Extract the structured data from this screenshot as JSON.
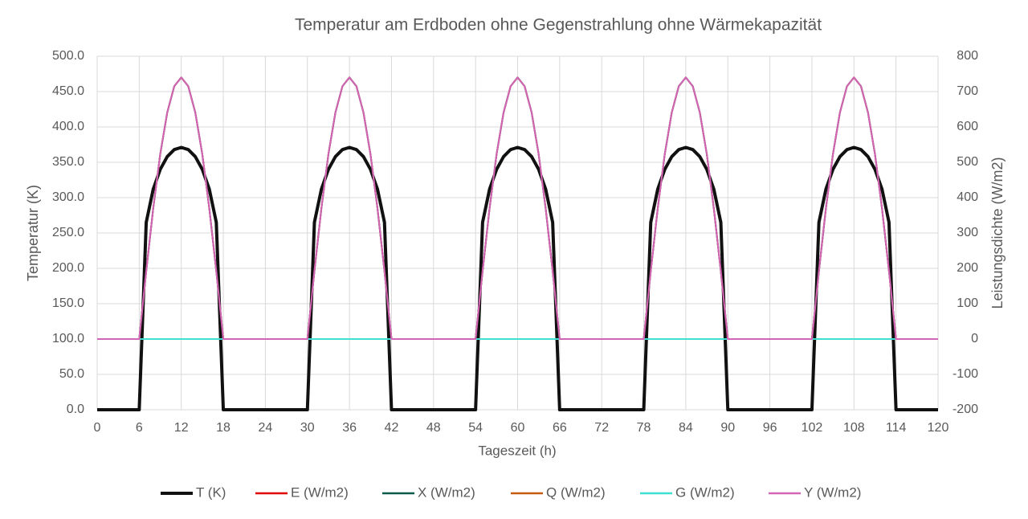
{
  "chart_data": {
    "type": "line",
    "title": "Temperatur am Erdboden ohne Gegenstrahlung ohne Wärmekapazität",
    "xlabel": "Tageszeit (h)",
    "ylabel": "Temperatur (K)",
    "y2label": "Leistungsdichte  (W/m2)",
    "x": [
      0,
      1,
      2,
      3,
      4,
      5,
      6,
      7,
      8,
      9,
      10,
      11,
      12,
      13,
      14,
      15,
      16,
      17,
      18,
      19,
      20,
      21,
      22,
      23,
      24,
      25,
      26,
      27,
      28,
      29,
      30,
      31,
      32,
      33,
      34,
      35,
      36,
      37,
      38,
      39,
      40,
      41,
      42,
      43,
      44,
      45,
      46,
      47,
      48,
      49,
      50,
      51,
      52,
      53,
      54,
      55,
      56,
      57,
      58,
      59,
      60,
      61,
      62,
      63,
      64,
      65,
      66,
      67,
      68,
      69,
      70,
      71,
      72,
      73,
      74,
      75,
      76,
      77,
      78,
      79,
      80,
      81,
      82,
      83,
      84,
      85,
      86,
      87,
      88,
      89,
      90,
      91,
      92,
      93,
      94,
      95,
      96,
      97,
      98,
      99,
      100,
      101,
      102,
      103,
      104,
      105,
      106,
      107,
      108,
      109,
      110,
      111,
      112,
      113,
      114,
      115,
      116,
      117,
      118,
      119,
      120
    ],
    "xlim": [
      0,
      120
    ],
    "xticks": [
      0,
      6,
      12,
      18,
      24,
      30,
      36,
      42,
      48,
      54,
      60,
      66,
      72,
      78,
      84,
      90,
      96,
      102,
      108,
      114,
      120
    ],
    "ylim": [
      0,
      500
    ],
    "yticks": [
      {
        "value": 0,
        "label": "0.0"
      },
      {
        "value": 50,
        "label": "50.0"
      },
      {
        "value": 100,
        "label": "100.0"
      },
      {
        "value": 150,
        "label": "150.0"
      },
      {
        "value": 200,
        "label": "200.0"
      },
      {
        "value": 250,
        "label": "250.0"
      },
      {
        "value": 300,
        "label": "300.0"
      },
      {
        "value": 350,
        "label": "350.0"
      },
      {
        "value": 400,
        "label": "400.0"
      },
      {
        "value": 450,
        "label": "450.0"
      },
      {
        "value": 500,
        "label": "500.0"
      }
    ],
    "y2lim": [
      -200,
      800
    ],
    "y2ticks": [
      -200,
      -100,
      0,
      100,
      200,
      300,
      400,
      500,
      600,
      700,
      800
    ],
    "grid": true,
    "legend": "bottom",
    "series": [
      {
        "name": "T (K)",
        "color": "#111111",
        "width": 4,
        "axis": "y",
        "values": [
          0,
          0,
          0,
          0,
          0,
          0,
          0,
          265,
          312,
          340,
          358,
          368,
          371,
          368,
          358,
          340,
          312,
          265,
          0,
          0,
          0,
          0,
          0,
          0,
          0,
          0,
          0,
          0,
          0,
          0,
          0,
          265,
          312,
          340,
          358,
          368,
          371,
          368,
          358,
          340,
          312,
          265,
          0,
          0,
          0,
          0,
          0,
          0,
          0,
          0,
          0,
          0,
          0,
          0,
          0,
          265,
          312,
          340,
          358,
          368,
          371,
          368,
          358,
          340,
          312,
          265,
          0,
          0,
          0,
          0,
          0,
          0,
          0,
          0,
          0,
          0,
          0,
          0,
          0,
          265,
          312,
          340,
          358,
          368,
          371,
          368,
          358,
          340,
          312,
          265,
          0,
          0,
          0,
          0,
          0,
          0,
          0,
          0,
          0,
          0,
          0,
          0,
          0,
          265,
          312,
          340,
          358,
          368,
          371,
          368,
          358,
          340,
          312,
          265,
          0,
          0,
          0,
          0,
          0,
          0,
          0
        ]
      },
      {
        "name": "E (W/m2)",
        "color": "#e00000",
        "width": 2,
        "axis": "y2",
        "values": [
          0,
          0,
          0,
          0,
          0,
          0,
          0,
          192,
          370,
          523,
          641,
          715,
          740,
          715,
          641,
          523,
          370,
          192,
          0,
          0,
          0,
          0,
          0,
          0,
          0,
          0,
          0,
          0,
          0,
          0,
          0,
          192,
          370,
          523,
          641,
          715,
          740,
          715,
          641,
          523,
          370,
          192,
          0,
          0,
          0,
          0,
          0,
          0,
          0,
          0,
          0,
          0,
          0,
          0,
          0,
          192,
          370,
          523,
          641,
          715,
          740,
          715,
          641,
          523,
          370,
          192,
          0,
          0,
          0,
          0,
          0,
          0,
          0,
          0,
          0,
          0,
          0,
          0,
          0,
          192,
          370,
          523,
          641,
          715,
          740,
          715,
          641,
          523,
          370,
          192,
          0,
          0,
          0,
          0,
          0,
          0,
          0,
          0,
          0,
          0,
          0,
          0,
          0,
          192,
          370,
          523,
          641,
          715,
          740,
          715,
          641,
          523,
          370,
          192,
          0,
          0,
          0,
          0,
          0,
          0,
          0
        ]
      },
      {
        "name": "X (W/m2)",
        "color": "#0b5a4a",
        "width": 2,
        "axis": "y2",
        "values": [
          0,
          0,
          0,
          0,
          0,
          0,
          0,
          192,
          370,
          523,
          641,
          715,
          740,
          715,
          641,
          523,
          370,
          192,
          0,
          0,
          0,
          0,
          0,
          0,
          0,
          0,
          0,
          0,
          0,
          0,
          0,
          192,
          370,
          523,
          641,
          715,
          740,
          715,
          641,
          523,
          370,
          192,
          0,
          0,
          0,
          0,
          0,
          0,
          0,
          0,
          0,
          0,
          0,
          0,
          0,
          192,
          370,
          523,
          641,
          715,
          740,
          715,
          641,
          523,
          370,
          192,
          0,
          0,
          0,
          0,
          0,
          0,
          0,
          0,
          0,
          0,
          0,
          0,
          0,
          192,
          370,
          523,
          641,
          715,
          740,
          715,
          641,
          523,
          370,
          192,
          0,
          0,
          0,
          0,
          0,
          0,
          0,
          0,
          0,
          0,
          0,
          0,
          0,
          192,
          370,
          523,
          641,
          715,
          740,
          715,
          641,
          523,
          370,
          192,
          0,
          0,
          0,
          0,
          0,
          0,
          0
        ]
      },
      {
        "name": "Q (W/m2)",
        "color": "#c55a11",
        "width": 2,
        "axis": "y2",
        "values": [
          0,
          0,
          0,
          0,
          0,
          0,
          0,
          0,
          0,
          0,
          0,
          0,
          0,
          0,
          0,
          0,
          0,
          0,
          0,
          0,
          0,
          0,
          0,
          0,
          0,
          0,
          0,
          0,
          0,
          0,
          0,
          0,
          0,
          0,
          0,
          0,
          0,
          0,
          0,
          0,
          0,
          0,
          0,
          0,
          0,
          0,
          0,
          0,
          0,
          0,
          0,
          0,
          0,
          0,
          0,
          0,
          0,
          0,
          0,
          0,
          0,
          0,
          0,
          0,
          0,
          0,
          0,
          0,
          0,
          0,
          0,
          0,
          0,
          0,
          0,
          0,
          0,
          0,
          0,
          0,
          0,
          0,
          0,
          0,
          0,
          0,
          0,
          0,
          0,
          0,
          0,
          0,
          0,
          0,
          0,
          0,
          0,
          0,
          0,
          0,
          0,
          0,
          0,
          0,
          0,
          0,
          0,
          0,
          0,
          0,
          0,
          0,
          0,
          0,
          0,
          0,
          0,
          0,
          0,
          0,
          0
        ]
      },
      {
        "name": "G (W/m2)",
        "color": "#3fe0d0",
        "width": 2,
        "axis": "y2",
        "values": [
          0,
          0,
          0,
          0,
          0,
          0,
          0,
          0,
          0,
          0,
          0,
          0,
          0,
          0,
          0,
          0,
          0,
          0,
          0,
          0,
          0,
          0,
          0,
          0,
          0,
          0,
          0,
          0,
          0,
          0,
          0,
          0,
          0,
          0,
          0,
          0,
          0,
          0,
          0,
          0,
          0,
          0,
          0,
          0,
          0,
          0,
          0,
          0,
          0,
          0,
          0,
          0,
          0,
          0,
          0,
          0,
          0,
          0,
          0,
          0,
          0,
          0,
          0,
          0,
          0,
          0,
          0,
          0,
          0,
          0,
          0,
          0,
          0,
          0,
          0,
          0,
          0,
          0,
          0,
          0,
          0,
          0,
          0,
          0,
          0,
          0,
          0,
          0,
          0,
          0,
          0,
          0,
          0,
          0,
          0,
          0,
          0,
          0,
          0,
          0,
          0,
          0,
          0,
          0,
          0,
          0,
          0,
          0,
          0,
          0,
          0,
          0,
          0,
          0,
          0,
          0,
          0,
          0,
          0,
          0,
          0
        ]
      },
      {
        "name": "Y (W/m2)",
        "color": "#d464b4",
        "width": 2,
        "axis": "y2",
        "values": [
          0,
          0,
          0,
          0,
          0,
          0,
          0,
          192,
          370,
          523,
          641,
          715,
          740,
          715,
          641,
          523,
          370,
          192,
          0,
          0,
          0,
          0,
          0,
          0,
          0,
          0,
          0,
          0,
          0,
          0,
          0,
          192,
          370,
          523,
          641,
          715,
          740,
          715,
          641,
          523,
          370,
          192,
          0,
          0,
          0,
          0,
          0,
          0,
          0,
          0,
          0,
          0,
          0,
          0,
          0,
          192,
          370,
          523,
          641,
          715,
          740,
          715,
          641,
          523,
          370,
          192,
          0,
          0,
          0,
          0,
          0,
          0,
          0,
          0,
          0,
          0,
          0,
          0,
          0,
          192,
          370,
          523,
          641,
          715,
          740,
          715,
          641,
          523,
          370,
          192,
          0,
          0,
          0,
          0,
          0,
          0,
          0,
          0,
          0,
          0,
          0,
          0,
          0,
          192,
          370,
          523,
          641,
          715,
          740,
          715,
          641,
          523,
          370,
          192,
          0,
          0,
          0,
          0,
          0,
          0,
          0
        ]
      }
    ]
  }
}
